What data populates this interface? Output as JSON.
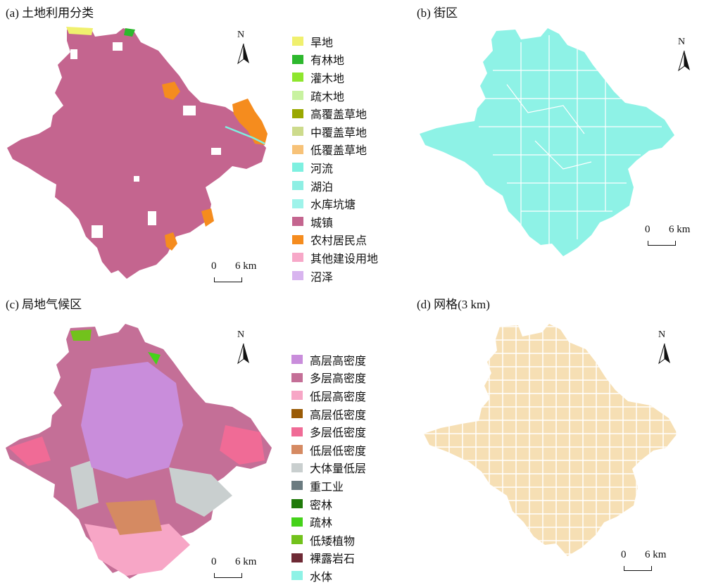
{
  "panels": {
    "a": {
      "title": "(a) 土地利用分类",
      "north": "N",
      "scale_zero": "0",
      "scale_km": "6 km",
      "legend": [
        {
          "label": "旱地",
          "color": "#f0f06e"
        },
        {
          "label": "有林地",
          "color": "#2db82d"
        },
        {
          "label": "灌木地",
          "color": "#8ee62e"
        },
        {
          "label": "疏木地",
          "color": "#c8f2a0"
        },
        {
          "label": "高覆盖草地",
          "color": "#9aa800"
        },
        {
          "label": "中覆盖草地",
          "color": "#cddb8c"
        },
        {
          "label": "低覆盖草地",
          "color": "#f7c278"
        },
        {
          "label": "河流",
          "color": "#7ef0e0"
        },
        {
          "label": "湖泊",
          "color": "#8eefe4"
        },
        {
          "label": "水库坑塘",
          "color": "#9ef3ea"
        },
        {
          "label": "城镇",
          "color": "#c4658f"
        },
        {
          "label": "农村居民点",
          "color": "#f58c1e"
        },
        {
          "label": "其他建设用地",
          "color": "#f7a8c8"
        },
        {
          "label": "沼泽",
          "color": "#d8b4ef"
        }
      ]
    },
    "b": {
      "title": "(b) 街区",
      "north": "N",
      "scale_zero": "0",
      "scale_km": "6 km",
      "fill": "#8ef2e6"
    },
    "c": {
      "title": "(c) 局地气候区",
      "north": "N",
      "scale_zero": "0",
      "scale_km": "6 km",
      "legend": [
        {
          "label": "高层高密度",
          "color": "#c98ddb"
        },
        {
          "label": "多层高密度",
          "color": "#c46f97"
        },
        {
          "label": "低层高密度",
          "color": "#f7a6c6"
        },
        {
          "label": "高层低密度",
          "color": "#9a5b06"
        },
        {
          "label": "多层低密度",
          "color": "#f06b96"
        },
        {
          "label": "低层低密度",
          "color": "#d58a62"
        },
        {
          "label": "大体量低层",
          "color": "#c9cfcf"
        },
        {
          "label": "重工业",
          "color": "#6b7b80"
        },
        {
          "label": "密林",
          "color": "#1f7a0a"
        },
        {
          "label": "疏林",
          "color": "#45d21a"
        },
        {
          "label": "低矮植物",
          "color": "#72c21c"
        },
        {
          "label": "裸露岩石",
          "color": "#6e2a35"
        },
        {
          "label": "水体",
          "color": "#8ef2e6"
        }
      ]
    },
    "d": {
      "title": "(d) 网格(3 km)",
      "north": "N",
      "scale_zero": "0",
      "scale_km": "6 km",
      "fill": "#f6dfb4"
    }
  }
}
